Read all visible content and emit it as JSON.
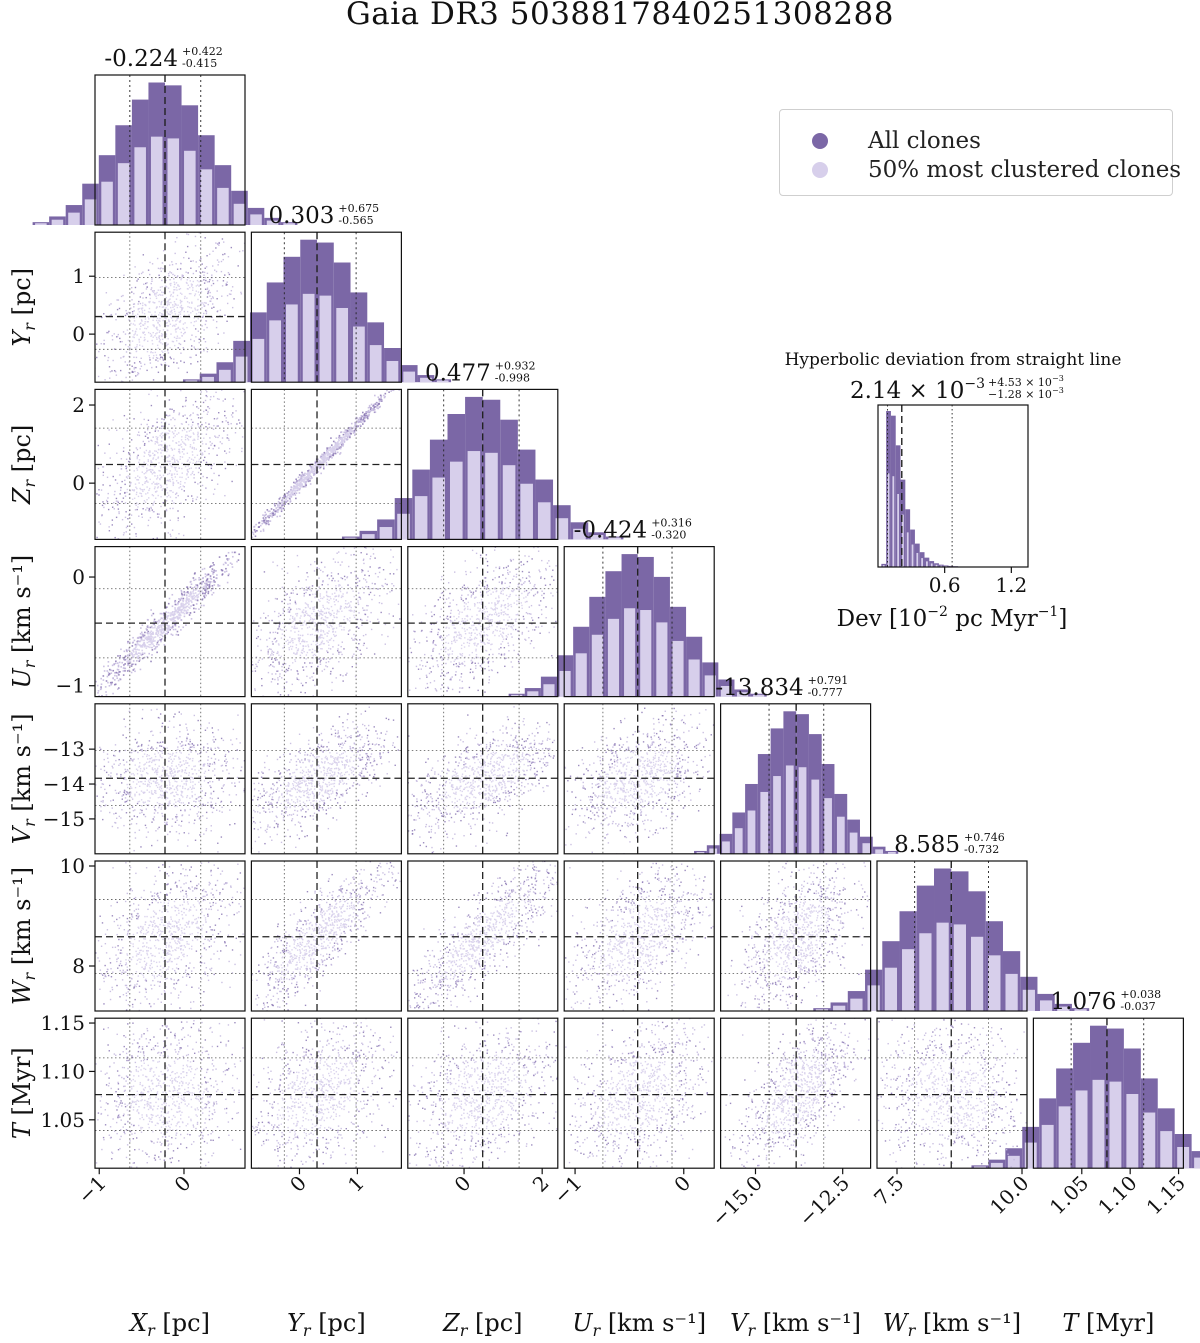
{
  "title": "Gaia DR3 5038817840251308288",
  "legend": {
    "items": [
      {
        "label": "All clones",
        "color": "#7b67a6"
      },
      {
        "label": "50% most clustered clones",
        "color": "#d7cfeb"
      }
    ]
  },
  "colors": {
    "dark": "#7b67a6",
    "light": "#d7cfeb",
    "scatter_light": "#c2b6dd",
    "scatter_dark": "#8b78b4"
  },
  "chart_data": {
    "type": "corner",
    "params": [
      {
        "key": "X",
        "sym": "X",
        "sub": "r",
        "unit": "[pc]",
        "range": [
          -1.05,
          0.72
        ],
        "median": -0.224,
        "lo": -0.639,
        "hi": 0.198,
        "ticks": [
          -1,
          0
        ],
        "tick_labels": [
          "−1",
          "0"
        ],
        "hist_title": "-0.224",
        "err_plus": "+0.422",
        "err_minus": "-0.415"
      },
      {
        "key": "Y",
        "sym": "Y",
        "sub": "r",
        "unit": "[pc]",
        "range": [
          -0.83,
          1.76
        ],
        "median": 0.303,
        "lo": -0.262,
        "hi": 0.978,
        "ticks": [
          0,
          1
        ],
        "tick_labels": [
          "0",
          "1"
        ],
        "hist_title": "0.303",
        "err_plus": "+0.675",
        "err_minus": "-0.565"
      },
      {
        "key": "Z",
        "sym": "Z",
        "sub": "r",
        "unit": "[pc]",
        "range": [
          -1.44,
          2.4
        ],
        "median": 0.477,
        "lo": -0.521,
        "hi": 1.409,
        "ticks": [
          0,
          2
        ],
        "tick_labels": [
          "0",
          "2"
        ],
        "hist_title": "0.477",
        "err_plus": "+0.932",
        "err_minus": "-0.998"
      },
      {
        "key": "U",
        "sym": "U",
        "sub": "r",
        "unit": "[km s⁻¹]",
        "range": [
          -1.1,
          0.28
        ],
        "median": -0.424,
        "lo": -0.744,
        "hi": -0.108,
        "ticks": [
          -1,
          0
        ],
        "tick_labels": [
          "−1",
          "0"
        ],
        "hist_title": "-0.424",
        "err_plus": "+0.316",
        "err_minus": "-0.320"
      },
      {
        "key": "V",
        "sym": "V",
        "sub": "r",
        "unit": "[km s⁻¹]",
        "range": [
          -16.0,
          -11.7
        ],
        "median": -13.834,
        "lo": -14.611,
        "hi": -13.043,
        "ticks": [
          -15.0,
          -12.5
        ],
        "tick_labels": [
          "−15.0",
          "−12.5"
        ],
        "tick_y_ticks": [
          -13,
          -14,
          -15
        ],
        "tick_y_labels": [
          "−13",
          "−14",
          "−15"
        ],
        "hist_title": "-13.834",
        "err_plus": "+0.791",
        "err_minus": "-0.777"
      },
      {
        "key": "W",
        "sym": "W",
        "sub": "r",
        "unit": "[km s⁻¹]",
        "range": [
          7.1,
          10.1
        ],
        "median": 8.585,
        "lo": 7.853,
        "hi": 9.331,
        "ticks": [
          7.5,
          10.0
        ],
        "tick_labels": [
          "7.5",
          "10.0"
        ],
        "tick_y_ticks": [
          8,
          10
        ],
        "tick_y_labels": [
          "8",
          "10"
        ],
        "hist_title": "8.585",
        "err_plus": "+0.746",
        "err_minus": "-0.732"
      },
      {
        "key": "T",
        "sym": "T",
        "sub": "",
        "unit": "[Myr]",
        "range": [
          1.0,
          1.155
        ],
        "median": 1.076,
        "lo": 1.039,
        "hi": 1.114,
        "ticks": [
          1.05,
          1.1,
          1.15
        ],
        "tick_labels": [
          "1.05",
          "1.10",
          "1.15"
        ],
        "hist_title": "1.076",
        "err_plus": "+0.038",
        "err_minus": "-0.037"
      }
    ],
    "correlations": {
      "1,0": 0.55,
      "2,0": 0.57,
      "2,1": 0.995,
      "3,0": 0.97,
      "3,1": 0.57,
      "3,2": 0.58,
      "4,0": 0.08,
      "4,1": 0.62,
      "4,2": 0.62,
      "4,3": 0.4,
      "5,0": 0.45,
      "5,1": 0.85,
      "5,2": 0.85,
      "5,3": 0.55,
      "5,4": 0.52,
      "6,0": 0.05,
      "6,1": 0.38,
      "6,2": 0.38,
      "6,3": 0.38,
      "6,4": 0.6,
      "6,5": -0.08
    },
    "hist_heights_rel": [
      0.0,
      0.02,
      0.06,
      0.14,
      0.29,
      0.49,
      0.7,
      0.88,
      1.0,
      0.98,
      0.84,
      0.63,
      0.42,
      0.24,
      0.12,
      0.05,
      0.02,
      0.0
    ],
    "dev_panel": {
      "title": "Hyperbolic deviation from straight line",
      "value": "2.14 × 10",
      "value_exp": "−3",
      "err_plus": "+4.53 × 10",
      "err_plus_exp": "−3",
      "err_minus": "−1.28 × 10",
      "err_minus_exp": "−3",
      "xlabel": "Dev [10",
      "xlabel_exp": "−2",
      "xlabel_tail": " pc Myr",
      "xlabel_tail_exp": "−1",
      "xlabel_end": "]",
      "ticks": [
        0.6,
        1.2
      ],
      "tick_labels": [
        "0.6",
        "1.2"
      ],
      "range": [
        0.0,
        1.35
      ],
      "median": 0.214,
      "lo": 0.086,
      "hi": 0.667,
      "hist_rel": [
        0.02,
        1.0,
        0.97,
        0.78,
        0.56,
        0.37,
        0.24,
        0.15,
        0.095,
        0.06,
        0.038,
        0.024,
        0.015,
        0.01,
        0.007,
        0.005,
        0.003,
        0.002,
        0.002,
        0.001,
        0.001,
        0.0
      ]
    }
  }
}
